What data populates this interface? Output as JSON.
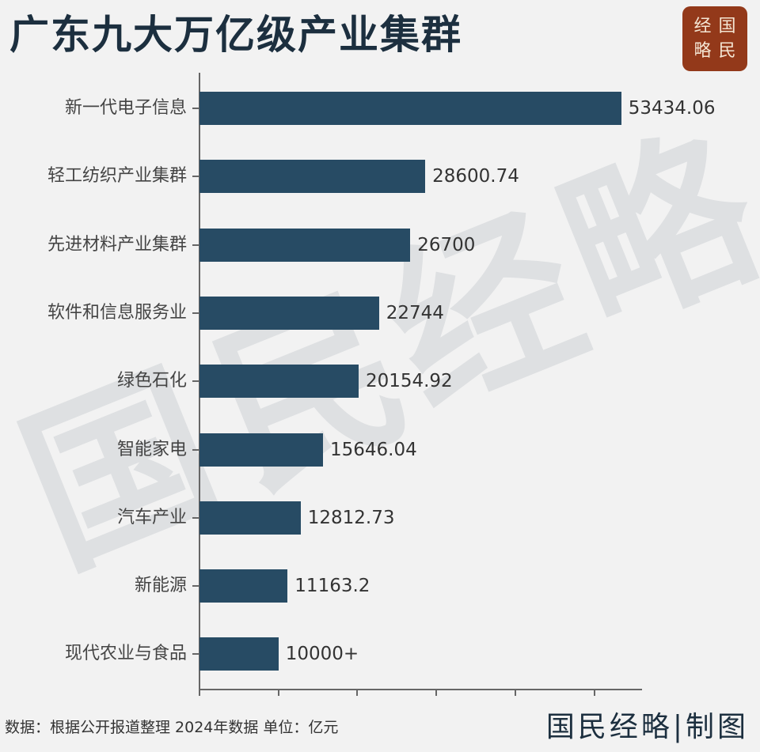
{
  "header": {
    "title": "广东九大万亿级产业集群",
    "badge_chars": [
      "经",
      "国",
      "略",
      "民"
    ]
  },
  "watermark": [
    "国",
    "民",
    "经",
    "略"
  ],
  "footer": {
    "source": "数据：根据公开报道整理 2024年数据 单位：亿元",
    "brand": "国民经略|制图"
  },
  "colors": {
    "bar": "#274b64",
    "title": "#1c2f3f",
    "badge": "#93391a",
    "background": "#f2f2f2"
  },
  "chart_data": {
    "type": "bar",
    "orientation": "horizontal",
    "title": "广东九大万亿级产业集群",
    "xlabel": "",
    "ylabel": "",
    "unit": "亿元",
    "xlim": [
      0,
      56000
    ],
    "x_tick_count": 6,
    "x_tick_labels_shown": false,
    "grid": false,
    "legend": null,
    "categories": [
      "新一代电子信息",
      "轻工纺织产业集群",
      "先进材料产业集群",
      "软件和信息服务业",
      "绿色石化",
      "智能家电",
      "汽车产业",
      "新能源",
      "现代农业与食品"
    ],
    "values": [
      53434.06,
      28600.74,
      26700,
      22744,
      20154.92,
      15646.04,
      12812.73,
      11163.2,
      10000
    ],
    "value_labels": [
      "53434.06",
      "28600.74",
      "26700",
      "22744",
      "20154.92",
      "15646.04",
      "12812.73",
      "11163.2",
      "10000+"
    ],
    "note": "数据：根据公开报道整理 2024年数据 单位：亿元"
  }
}
